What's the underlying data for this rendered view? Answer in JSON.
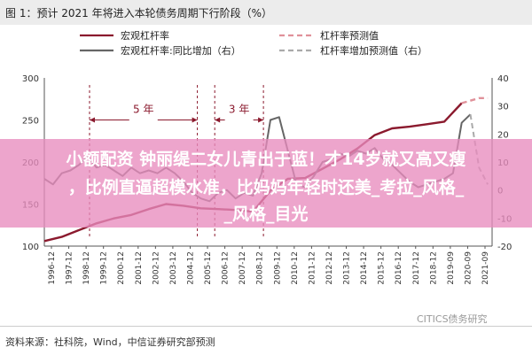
{
  "title": "图 1：预计 2021 年将进入本轮债务周期下行阶段（%）",
  "source": "资料来源：社科院，Wind，中信证券研究部预测",
  "watermark": "CITICS债务研究",
  "overlay": {
    "line1": "小额配资 钟丽缇二女儿青出于蓝！才14岁就又高又瘦",
    "line2": "，比例直逼超模水准，比妈妈年轻时还美_考拉_风格_",
    "line3": "_风格_目光"
  },
  "colors": {
    "actual": "#8b1a2e",
    "forecast": "#e0919a",
    "yoy": "#666666",
    "yoy_forecast": "#aaaaaa",
    "annotation": "#8b1a2e"
  },
  "chart_data": {
    "type": "line",
    "title": "图 1：预计 2021 年将进入本轮债务周期下行阶段（%）",
    "legend": [
      "宏观杠杆率",
      "杠杆率预测值",
      "宏观杠杆率:同比增加（右）",
      "杠杆率增加预测值（右）"
    ],
    "legend_position": "top",
    "x_ticks": [
      "1996-12",
      "1997-12",
      "1998-12",
      "1999-12",
      "2000-12",
      "2001-12",
      "2002-12",
      "2003-12",
      "2004-12",
      "2005-12",
      "2006-12",
      "2007-12",
      "2008-12",
      "2009-12",
      "2010-12",
      "2011-12",
      "2012-12",
      "2013-12",
      "2014-12",
      "2015-12",
      "2016-12",
      "2017-12",
      "2018-12",
      "2019-09",
      "2020-09",
      "2021-09"
    ],
    "y_left": {
      "min": 100,
      "max": 300,
      "ticks": [
        100,
        150,
        200,
        250,
        300
      ]
    },
    "y_right": {
      "min": -20,
      "max": 40,
      "ticks": [
        -20,
        -10,
        0,
        10,
        20,
        30,
        40
      ]
    },
    "annotations": [
      {
        "text": "5 年",
        "x_start": 1998.6,
        "x_end": 2004.8,
        "y_right": 25
      },
      {
        "text": "3 年",
        "x_start": 2005.8,
        "x_end": 2008.6,
        "y_right": 25
      }
    ],
    "series": [
      {
        "name": "宏观杠杆率",
        "axis": "left",
        "x": [
          1996,
          1997,
          1998,
          1999,
          2000,
          2001,
          2002,
          2003,
          2004,
          2005,
          2006,
          2007,
          2008,
          2009,
          2010,
          2011,
          2012,
          2013,
          2014,
          2015,
          2016,
          2017,
          2018,
          2019,
          2020
        ],
        "values": [
          106,
          111,
          119,
          127,
          133,
          137,
          144,
          150,
          148,
          145,
          144,
          143,
          141,
          166,
          180,
          181,
          192,
          203,
          216,
          232,
          240,
          242,
          245,
          248,
          270
        ]
      },
      {
        "name": "杠杆率预测值",
        "axis": "left",
        "x": [
          2020,
          2020.5,
          2021,
          2021.5
        ],
        "values": [
          270,
          273,
          276,
          276
        ]
      },
      {
        "name": "宏观杠杆率:同比增加（右）",
        "axis": "right",
        "x": [
          1996,
          1996.5,
          1997,
          1997.5,
          1998,
          1998.5,
          1999,
          1999.5,
          2000,
          2000.5,
          2001,
          2001.5,
          2002,
          2002.5,
          2003,
          2003.5,
          2004,
          2004.5,
          2005,
          2005.5,
          2006,
          2006.5,
          2007,
          2007.5,
          2008,
          2008.5,
          2009,
          2009.5,
          2010,
          2010.5,
          2011,
          2011.5,
          2012,
          2012.5,
          2013,
          2013.5,
          2014,
          2014.5,
          2015,
          2015.5,
          2016,
          2016.5,
          2017,
          2017.5,
          2018,
          2018.5,
          2019,
          2019.5,
          2020,
          2020.5
        ],
        "values": [
          4,
          2,
          6,
          7,
          9,
          12,
          8,
          9,
          7,
          5,
          8,
          6,
          7,
          6,
          8,
          6,
          3,
          -1,
          -3,
          -4,
          -1,
          0,
          -3,
          -1,
          -2,
          6,
          25,
          26,
          14,
          2,
          1,
          5,
          10,
          11,
          13,
          12,
          14,
          13,
          15,
          11,
          9,
          6,
          3,
          1,
          2,
          3,
          4,
          6,
          24,
          27
        ]
      },
      {
        "name": "杠杆率增加预测值（右）",
        "axis": "right",
        "x": [
          2020.5,
          2021,
          2021.5
        ],
        "values": [
          27,
          8,
          2
        ]
      }
    ]
  }
}
